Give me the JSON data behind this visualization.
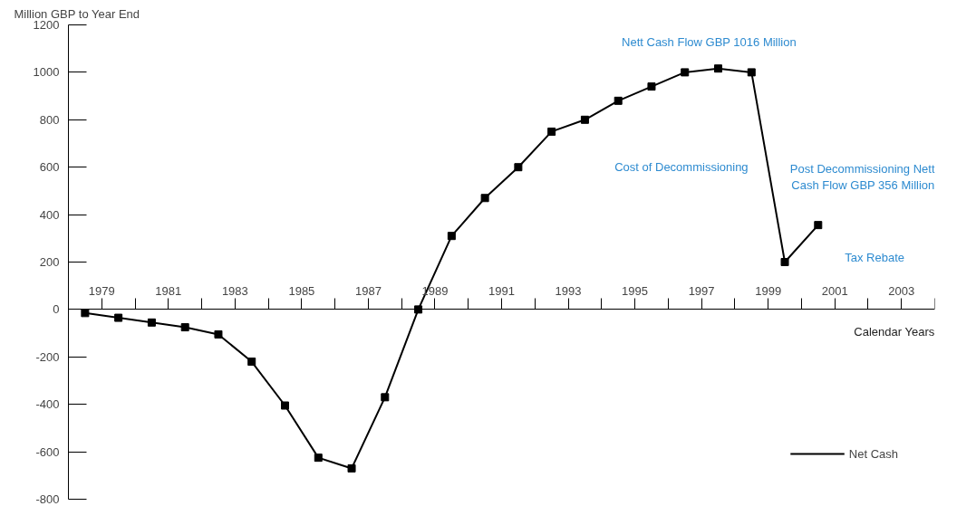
{
  "chart_data": {
    "type": "line",
    "ylabel": "Million GBP to Year End",
    "xlabel": "Calendar Years",
    "x": [
      1978.5,
      1979.5,
      1980.5,
      1981.5,
      1982.5,
      1983.5,
      1984.5,
      1985.5,
      1986.5,
      1987.5,
      1988.5,
      1989.5,
      1990.5,
      1991.5,
      1992.5,
      1993.5,
      1994.5,
      1995.5,
      1996.5,
      1997.5,
      1998.5,
      1999.5,
      2000.5
    ],
    "series": [
      {
        "name": "Net Cash",
        "color": "#000000",
        "values": [
          -15,
          -35,
          -55,
          -75,
          -105,
          -220,
          -405,
          -625,
          -670,
          -370,
          0,
          310,
          470,
          600,
          750,
          800,
          880,
          940,
          1000,
          1016,
          1000,
          200,
          356
        ]
      }
    ],
    "xlim": [
      1978,
      2004
    ],
    "xticks": [
      1979,
      {
        "value": 1980,
        "label": null
      },
      1981,
      {
        "value": 1982,
        "label": null
      },
      1983,
      {
        "value": 1984,
        "label": null
      },
      1985,
      {
        "value": 1986,
        "label": null
      },
      1987,
      {
        "value": 1988,
        "label": null
      },
      1989,
      {
        "value": 1990,
        "label": null
      },
      1991,
      {
        "value": 1992,
        "label": null
      },
      1993,
      {
        "value": 1994,
        "label": null
      },
      1995,
      {
        "value": 1996,
        "label": null
      },
      1997,
      {
        "value": 1998,
        "label": null
      },
      1999,
      {
        "value": 2000,
        "label": null
      },
      2001,
      {
        "value": 2002,
        "label": null
      },
      2003,
      {
        "value": 2004,
        "label": null
      }
    ],
    "ylim": [
      -800,
      1200
    ],
    "yticks": [
      -800,
      -600,
      -400,
      -200,
      0,
      200,
      400,
      600,
      800,
      1000,
      1200
    ],
    "annotations": [
      {
        "text": "Nett Cash Flow GBP 1016 Million",
        "x": 1997.5,
        "y": 1016
      },
      "Cost of Decommissioning",
      "Post Decommissioning Nett\nCash Flow GBP 356 Million",
      "Tax Rebate"
    ],
    "marker": "square",
    "line_style": "solid",
    "grid": false,
    "legend": "bottom right"
  }
}
